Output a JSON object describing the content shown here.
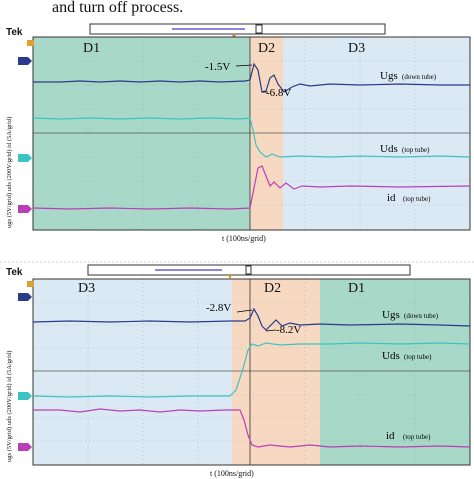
{
  "header_text": "and turn off process.",
  "chart_data": [
    {
      "type": "line",
      "instrument_label": "Tek",
      "xlabel": "t (100ns/grid)",
      "ylabel": "ugs (5V/grid) uds (200V/grid) id (5A/grid)",
      "regions": [
        {
          "label": "D1",
          "color": "#a8d8c8"
        },
        {
          "label": "D2",
          "color": "#f7d9c2"
        },
        {
          "label": "D3",
          "color": "#dbe9f5"
        }
      ],
      "annotations": [
        {
          "label": "-1.5V"
        },
        {
          "label": "-6.8V"
        }
      ],
      "series": [
        {
          "name": "Ugs",
          "note": "(down tube)",
          "color": "#2b3a8a"
        },
        {
          "name": "Uds",
          "note": "(top tube)",
          "color": "#3cc3c3"
        },
        {
          "name": "id",
          "note": "(top tube)",
          "color": "#b93fb9"
        }
      ]
    },
    {
      "type": "line",
      "instrument_label": "Tek",
      "xlabel": "t (100ns/grid)",
      "ylabel": "ugs (5V/grid) uds (200V/grid) id (5A/grid)",
      "regions": [
        {
          "label": "D3",
          "color": "#dbe9f5"
        },
        {
          "label": "D2",
          "color": "#f7d9c2"
        },
        {
          "label": "D1",
          "color": "#a8d8c8"
        }
      ],
      "annotations": [
        {
          "label": "-2.8V"
        },
        {
          "label": "-8.2V"
        }
      ],
      "series": [
        {
          "name": "Ugs",
          "note": "(down tube)",
          "color": "#2b3a8a"
        },
        {
          "name": "Uds",
          "note": "(top tube)",
          "color": "#3cc3c3"
        },
        {
          "name": "id",
          "note": "(top tube)",
          "color": "#b93fb9"
        }
      ]
    }
  ]
}
